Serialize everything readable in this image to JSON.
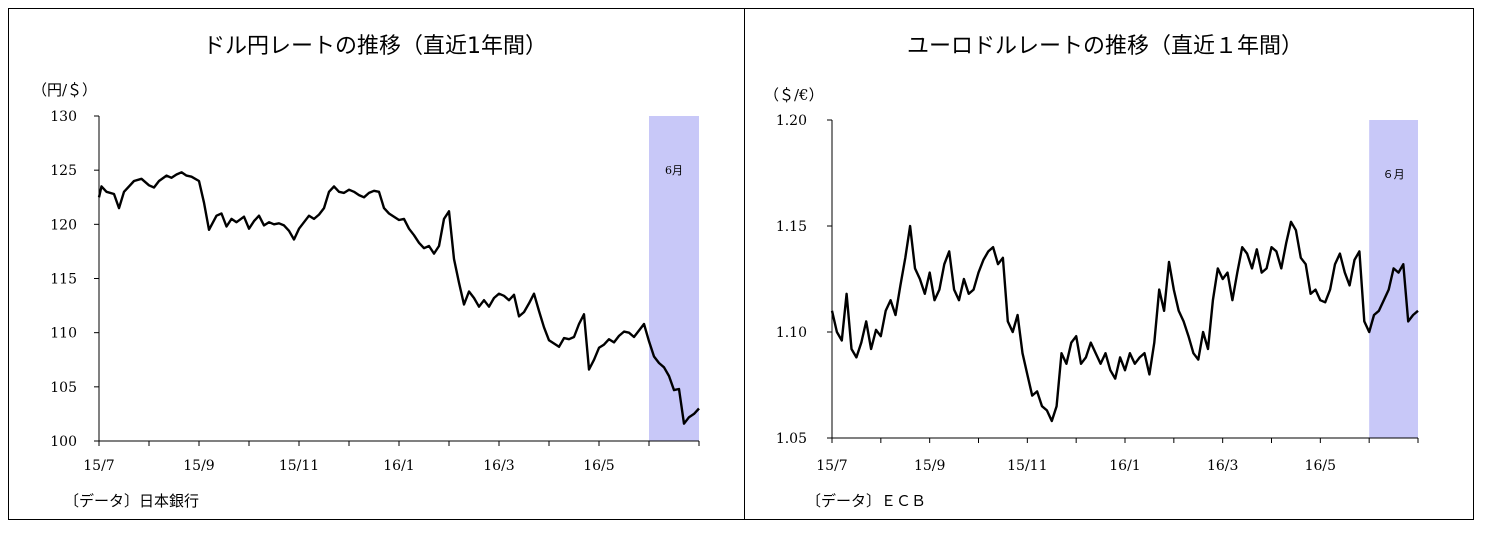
{
  "accent_colors": {
    "band": "#c8c8f8",
    "line": "#000000"
  },
  "chart_data": [
    {
      "type": "line",
      "title": "ドル円レートの推移（直近1年間）",
      "unit_label": "（円/＄）",
      "source": "〔データ〕日本銀行",
      "highlight_label": "6月",
      "highlight_range": [
        11.0,
        12.0
      ],
      "ylim": [
        100,
        130
      ],
      "yticks": [
        "130",
        "125",
        "120",
        "115",
        "110",
        "105",
        "100"
      ],
      "xlim": [
        0,
        12
      ],
      "xticks": [
        "15/7",
        "15/9",
        "15/11",
        "16/1",
        "16/3",
        "16/5"
      ],
      "series": [
        {
          "x": [
            0.0,
            0.05,
            0.15,
            0.3,
            0.4,
            0.5,
            0.6,
            0.7,
            0.85,
            1.0,
            1.1,
            1.2,
            1.35,
            1.45,
            1.55,
            1.65,
            1.75,
            1.85,
            2.0,
            2.1,
            2.2,
            2.35,
            2.45,
            2.55,
            2.65,
            2.75,
            2.9,
            3.0,
            3.1,
            3.2,
            3.3,
            3.4,
            3.5,
            3.6,
            3.7,
            3.8,
            3.9,
            4.0,
            4.1,
            4.2,
            4.3,
            4.4,
            4.5,
            4.6,
            4.7,
            4.8,
            4.9,
            5.0,
            5.1,
            5.2,
            5.3,
            5.4,
            5.5,
            5.6,
            5.7,
            5.8,
            5.9,
            6.0,
            6.1,
            6.2,
            6.3,
            6.4,
            6.5,
            6.6,
            6.7,
            6.8,
            6.9,
            7.0,
            7.1,
            7.2,
            7.3,
            7.4,
            7.5,
            7.6,
            7.7,
            7.8,
            7.9,
            8.0,
            8.1,
            8.2,
            8.3,
            8.4,
            8.5,
            8.6,
            8.7,
            8.8,
            8.9,
            9.0,
            9.1,
            9.2,
            9.3,
            9.4,
            9.5,
            9.6,
            9.7,
            9.8,
            9.9,
            10.0,
            10.1,
            10.2,
            10.3,
            10.4,
            10.5,
            10.6,
            10.7,
            10.8,
            10.9,
            11.0,
            11.1,
            11.2,
            11.3,
            11.4,
            11.5,
            11.6,
            11.7,
            11.8,
            11.9,
            12.0
          ],
          "y": [
            122.5,
            123.5,
            123.0,
            122.8,
            121.5,
            123.0,
            123.5,
            124.0,
            124.2,
            123.6,
            123.4,
            124.0,
            124.5,
            124.3,
            124.6,
            124.8,
            124.5,
            124.4,
            124.0,
            122.0,
            119.5,
            120.8,
            121.0,
            119.8,
            120.5,
            120.2,
            120.7,
            119.6,
            120.3,
            120.8,
            119.9,
            120.2,
            120.0,
            120.1,
            119.9,
            119.4,
            118.6,
            119.6,
            120.2,
            120.8,
            120.5,
            120.9,
            121.5,
            123.0,
            123.5,
            123.0,
            122.9,
            123.2,
            123.0,
            122.7,
            122.5,
            122.9,
            123.1,
            123.0,
            121.5,
            121.0,
            120.7,
            120.4,
            120.5,
            119.6,
            119.0,
            118.3,
            117.8,
            118.0,
            117.3,
            118.0,
            120.5,
            121.2,
            116.8,
            114.6,
            112.6,
            113.8,
            113.2,
            112.4,
            113.0,
            112.4,
            113.2,
            113.6,
            113.4,
            113.0,
            113.5,
            111.5,
            111.9,
            112.7,
            113.6,
            112.0,
            110.5,
            109.3,
            109.0,
            108.7,
            109.5,
            109.4,
            109.6,
            110.8,
            111.7,
            106.6,
            107.5,
            108.6,
            108.9,
            109.4,
            109.1,
            109.7,
            110.1,
            110.0,
            109.6,
            110.2,
            110.8,
            109.2,
            107.8,
            107.2,
            106.8,
            106.0,
            104.7,
            104.8,
            101.6,
            102.2,
            102.5,
            103.0
          ]
        }
      ]
    },
    {
      "type": "line",
      "title": "ユーロドルレートの推移（直近１年間）",
      "unit_label": "（＄/€）",
      "source": "〔データ〕ＥＣＢ",
      "highlight_label": "６月",
      "highlight_range": [
        11.0,
        12.0
      ],
      "ylim": [
        1.05,
        1.2
      ],
      "yticks": [
        "1.20",
        "1.15",
        "1.10",
        "1.05"
      ],
      "xlim": [
        0,
        12
      ],
      "xticks": [
        "15/7",
        "15/9",
        "15/11",
        "16/1",
        "16/3",
        "16/5"
      ],
      "series": [
        {
          "x": [
            0.0,
            0.1,
            0.2,
            0.3,
            0.4,
            0.5,
            0.6,
            0.7,
            0.8,
            0.9,
            1.0,
            1.1,
            1.2,
            1.3,
            1.4,
            1.5,
            1.6,
            1.7,
            1.8,
            1.9,
            2.0,
            2.1,
            2.2,
            2.3,
            2.4,
            2.5,
            2.6,
            2.7,
            2.8,
            2.9,
            3.0,
            3.1,
            3.2,
            3.3,
            3.4,
            3.5,
            3.6,
            3.7,
            3.8,
            3.9,
            4.0,
            4.1,
            4.2,
            4.3,
            4.4,
            4.5,
            4.6,
            4.7,
            4.8,
            4.9,
            5.0,
            5.1,
            5.2,
            5.3,
            5.4,
            5.5,
            5.6,
            5.7,
            5.8,
            5.9,
            6.0,
            6.1,
            6.2,
            6.3,
            6.4,
            6.5,
            6.6,
            6.7,
            6.8,
            6.9,
            7.0,
            7.1,
            7.2,
            7.3,
            7.4,
            7.5,
            7.6,
            7.7,
            7.8,
            7.9,
            8.0,
            8.1,
            8.2,
            8.3,
            8.4,
            8.5,
            8.6,
            8.7,
            8.8,
            8.9,
            9.0,
            9.1,
            9.2,
            9.3,
            9.4,
            9.5,
            9.6,
            9.7,
            9.8,
            9.9,
            10.0,
            10.1,
            10.2,
            10.3,
            10.4,
            10.5,
            10.6,
            10.7,
            10.8,
            10.9,
            11.0,
            11.1,
            11.2,
            11.3,
            11.4,
            11.5,
            11.6,
            11.7,
            11.8,
            11.9,
            12.0
          ],
          "y": [
            1.11,
            1.1,
            1.096,
            1.118,
            1.092,
            1.088,
            1.095,
            1.105,
            1.092,
            1.101,
            1.098,
            1.11,
            1.115,
            1.108,
            1.122,
            1.135,
            1.15,
            1.13,
            1.125,
            1.118,
            1.128,
            1.115,
            1.12,
            1.132,
            1.138,
            1.12,
            1.115,
            1.125,
            1.118,
            1.12,
            1.128,
            1.134,
            1.138,
            1.14,
            1.132,
            1.135,
            1.105,
            1.1,
            1.108,
            1.09,
            1.08,
            1.07,
            1.072,
            1.065,
            1.063,
            1.058,
            1.065,
            1.09,
            1.085,
            1.095,
            1.098,
            1.085,
            1.088,
            1.095,
            1.09,
            1.085,
            1.09,
            1.082,
            1.078,
            1.088,
            1.082,
            1.09,
            1.085,
            1.088,
            1.09,
            1.08,
            1.095,
            1.12,
            1.11,
            1.133,
            1.12,
            1.11,
            1.105,
            1.098,
            1.09,
            1.087,
            1.1,
            1.092,
            1.115,
            1.13,
            1.125,
            1.128,
            1.115,
            1.128,
            1.14,
            1.137,
            1.13,
            1.139,
            1.128,
            1.13,
            1.14,
            1.138,
            1.13,
            1.142,
            1.152,
            1.148,
            1.135,
            1.132,
            1.118,
            1.12,
            1.115,
            1.114,
            1.12,
            1.132,
            1.137,
            1.128,
            1.122,
            1.134,
            1.138,
            1.105,
            1.1,
            1.108,
            1.11,
            1.115,
            1.12,
            1.13,
            1.128,
            1.132,
            1.105,
            1.108,
            1.11
          ]
        }
      ]
    }
  ]
}
